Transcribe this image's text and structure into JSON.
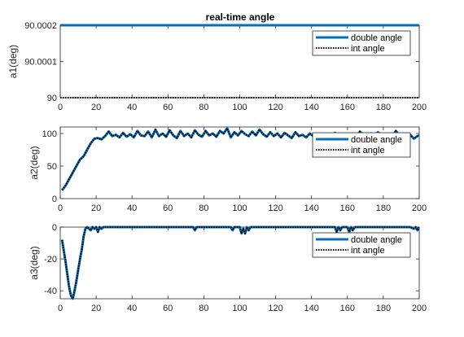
{
  "colors": {
    "double": "#0072BD",
    "int": "#000000",
    "axis": "#262626",
    "background": "#ffffff"
  },
  "chart_data": [
    {
      "type": "line",
      "title": "real-time angle",
      "xlabel": "",
      "ylabel": "a1(deg)",
      "xlim": [
        0,
        200
      ],
      "ylim": [
        90,
        90.0002
      ],
      "xticks": [
        0,
        20,
        40,
        60,
        80,
        100,
        120,
        140,
        160,
        180,
        200
      ],
      "yticks": [
        90,
        90.0001,
        90.0002
      ],
      "ytick_labels": [
        "90",
        "90.0001",
        "90.0002"
      ],
      "legend": "top-right",
      "grid": false,
      "series": [
        {
          "name": "double angle",
          "style": "solid",
          "x": [
            0,
            200
          ],
          "y": [
            90.0002,
            90.0002
          ]
        },
        {
          "name": "int angle",
          "style": "dotted",
          "x": [
            0,
            200
          ],
          "y": [
            90,
            90
          ]
        }
      ]
    },
    {
      "type": "line",
      "title": "",
      "xlabel": "",
      "ylabel": "a2(deg)",
      "xlim": [
        0,
        200
      ],
      "ylim": [
        0,
        110
      ],
      "xticks": [
        0,
        20,
        40,
        60,
        80,
        100,
        120,
        140,
        160,
        180,
        200
      ],
      "yticks": [
        0,
        50,
        100
      ],
      "ytick_labels": [
        "0",
        "50",
        "100"
      ],
      "legend": "top-right",
      "grid": false,
      "series": [
        {
          "name": "double angle",
          "style": "solid",
          "x": [
            1,
            3,
            5,
            7,
            9,
            11,
            13,
            15,
            17,
            19,
            21,
            23,
            25,
            27,
            29,
            31,
            33,
            35,
            37,
            39,
            41,
            43,
            45,
            47,
            49,
            51,
            53,
            55,
            57,
            59,
            61,
            63,
            65,
            67,
            69,
            71,
            73,
            75,
            77,
            79,
            81,
            83,
            85,
            87,
            89,
            91,
            93,
            95,
            97,
            99,
            101,
            103,
            105,
            107,
            109,
            111,
            113,
            115,
            117,
            119,
            121,
            123,
            125,
            127,
            129,
            131,
            133,
            135,
            137,
            139,
            141,
            143,
            145,
            147,
            149,
            151,
            153,
            155,
            157,
            159,
            161,
            163,
            165,
            167,
            169,
            171,
            173,
            175,
            177,
            179,
            181,
            183,
            185,
            187,
            189,
            191,
            193,
            195,
            197,
            199,
            200
          ],
          "y": [
            13,
            20,
            30,
            40,
            50,
            60,
            65,
            75,
            85,
            92,
            93,
            91,
            96,
            103,
            96,
            98,
            94,
            101,
            95,
            99,
            94,
            104,
            97,
            96,
            103,
            94,
            106,
            96,
            100,
            95,
            105,
            97,
            93,
            104,
            96,
            100,
            94,
            105,
            98,
            95,
            104,
            97,
            100,
            95,
            104,
            100,
            108,
            94,
            102,
            97,
            104,
            99,
            96,
            103,
            97,
            106,
            99,
            95,
            102,
            96,
            100,
            94,
            101,
            97,
            93,
            102,
            96,
            98,
            94,
            100,
            96,
            93,
            99,
            95,
            97,
            93,
            101,
            95,
            99,
            94,
            97,
            100,
            95,
            103,
            97,
            93,
            100,
            96,
            102,
            97,
            93,
            99,
            95,
            104,
            97,
            100,
            94,
            98,
            92,
            96,
            97
          ]
        },
        {
          "name": "int angle",
          "style": "dotted",
          "x": [
            1,
            3,
            5,
            7,
            9,
            11,
            13,
            15,
            17,
            19,
            21,
            23,
            25,
            27,
            29,
            31,
            33,
            35,
            37,
            39,
            41,
            43,
            45,
            47,
            49,
            51,
            53,
            55,
            57,
            59,
            61,
            63,
            65,
            67,
            69,
            71,
            73,
            75,
            77,
            79,
            81,
            83,
            85,
            87,
            89,
            91,
            93,
            95,
            97,
            99,
            101,
            103,
            105,
            107,
            109,
            111,
            113,
            115,
            117,
            119,
            121,
            123,
            125,
            127,
            129,
            131,
            133,
            135,
            137,
            139,
            141,
            143,
            145,
            147,
            149,
            151,
            153,
            155,
            157,
            159,
            161,
            163,
            165,
            167,
            169,
            171,
            173,
            175,
            177,
            179,
            181,
            183,
            185,
            187,
            189,
            191,
            193,
            195,
            197,
            199,
            200
          ],
          "y": [
            13,
            20,
            30,
            40,
            50,
            60,
            65,
            75,
            85,
            92,
            93,
            91,
            96,
            103,
            96,
            98,
            94,
            101,
            95,
            99,
            94,
            104,
            97,
            96,
            103,
            94,
            106,
            96,
            100,
            95,
            105,
            97,
            93,
            104,
            96,
            100,
            94,
            105,
            98,
            95,
            104,
            97,
            100,
            95,
            104,
            100,
            108,
            94,
            102,
            97,
            104,
            99,
            96,
            103,
            97,
            106,
            99,
            95,
            102,
            96,
            100,
            94,
            101,
            97,
            93,
            102,
            96,
            98,
            94,
            100,
            96,
            93,
            99,
            95,
            97,
            93,
            101,
            95,
            99,
            94,
            97,
            100,
            95,
            103,
            97,
            93,
            100,
            96,
            102,
            97,
            93,
            99,
            95,
            104,
            97,
            100,
            94,
            98,
            92,
            96,
            97
          ]
        }
      ]
    },
    {
      "type": "line",
      "title": "",
      "xlabel": "",
      "ylabel": "a3(deg)",
      "xlim": [
        0,
        200
      ],
      "ylim": [
        -45,
        0
      ],
      "xticks": [
        0,
        20,
        40,
        60,
        80,
        100,
        120,
        140,
        160,
        180,
        200
      ],
      "yticks": [
        -40,
        -20,
        0
      ],
      "ytick_labels": [
        "-40",
        "-20",
        "0"
      ],
      "legend": "top-right",
      "grid": false,
      "series": [
        {
          "name": "double angle",
          "style": "solid",
          "x": [
            1,
            2,
            3,
            4,
            5,
            6,
            7,
            8,
            9,
            10,
            11,
            12,
            13,
            14,
            15,
            16,
            17,
            18,
            19,
            20,
            21,
            22,
            23,
            24,
            25,
            30,
            40,
            50,
            60,
            70,
            74,
            75,
            76,
            80,
            90,
            95,
            96,
            97,
            100,
            101,
            102,
            103,
            104,
            105,
            106,
            110,
            120,
            130,
            140,
            150,
            153,
            154,
            155,
            156,
            157,
            160,
            161,
            162,
            163,
            164,
            170,
            180,
            190,
            195,
            197,
            198,
            199,
            200
          ],
          "y": [
            -8,
            -15,
            -22,
            -30,
            -38,
            -43,
            -45,
            -40,
            -34,
            -27,
            -20,
            -14,
            -6,
            -1,
            0,
            -1,
            -2,
            0,
            -1,
            0,
            -3,
            0,
            -1,
            0,
            0,
            0,
            0,
            0,
            0,
            0,
            0,
            -2,
            0,
            0,
            0,
            0,
            -2,
            0,
            0,
            -4,
            -1,
            -4,
            0,
            -2,
            0,
            0,
            0,
            0,
            0,
            0,
            0,
            -3,
            0,
            -2,
            0,
            0,
            -3,
            0,
            -2,
            0,
            0,
            0,
            0,
            0,
            -1,
            0,
            -2,
            0
          ]
        },
        {
          "name": "int angle",
          "style": "dotted",
          "x": [
            1,
            2,
            3,
            4,
            5,
            6,
            7,
            8,
            9,
            10,
            11,
            12,
            13,
            14,
            15,
            16,
            17,
            18,
            19,
            20,
            21,
            22,
            23,
            24,
            25,
            30,
            40,
            50,
            60,
            70,
            74,
            75,
            76,
            80,
            90,
            95,
            96,
            97,
            100,
            101,
            102,
            103,
            104,
            105,
            106,
            110,
            120,
            130,
            140,
            150,
            153,
            154,
            155,
            156,
            157,
            160,
            161,
            162,
            163,
            164,
            170,
            180,
            190,
            195,
            197,
            198,
            199,
            200
          ],
          "y": [
            -8,
            -15,
            -22,
            -30,
            -38,
            -43,
            -45,
            -40,
            -34,
            -27,
            -20,
            -14,
            -6,
            -1,
            0,
            -1,
            -2,
            0,
            -1,
            0,
            -3,
            0,
            -1,
            0,
            0,
            0,
            0,
            0,
            0,
            0,
            0,
            -2,
            0,
            0,
            0,
            0,
            -2,
            0,
            0,
            -4,
            -1,
            -4,
            0,
            -2,
            0,
            0,
            0,
            0,
            0,
            0,
            0,
            -3,
            0,
            -2,
            0,
            0,
            -3,
            0,
            -2,
            0,
            0,
            0,
            0,
            0,
            -1,
            0,
            -2,
            0
          ]
        }
      ]
    }
  ]
}
